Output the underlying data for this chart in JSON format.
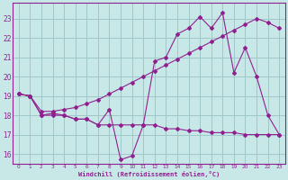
{
  "xlabel": "Windchill (Refroidissement éolien,°C)",
  "bg_color": "#c8e8e8",
  "grid_color": "#a0c8c8",
  "line_color": "#902090",
  "xlim": [
    -0.5,
    23.5
  ],
  "ylim": [
    15.5,
    23.8
  ],
  "yticks": [
    16,
    17,
    18,
    19,
    20,
    21,
    22,
    23
  ],
  "xticks": [
    0,
    1,
    2,
    3,
    4,
    5,
    6,
    7,
    8,
    9,
    10,
    11,
    12,
    13,
    14,
    15,
    16,
    17,
    18,
    19,
    20,
    21,
    22,
    23
  ],
  "line1_x": [
    0,
    1,
    2,
    3,
    4,
    5,
    6,
    7,
    8,
    9,
    10,
    11,
    12,
    13,
    14,
    15,
    16,
    17,
    18,
    19,
    20,
    21,
    22,
    23
  ],
  "line1_y": [
    19.1,
    19.0,
    18.0,
    18.0,
    18.0,
    17.8,
    17.8,
    17.5,
    18.3,
    15.7,
    15.9,
    17.5,
    20.8,
    21.0,
    22.2,
    22.5,
    23.1,
    22.5,
    23.3,
    20.2,
    21.5,
    20.0,
    18.0,
    17.0
  ],
  "line2_x": [
    0,
    1,
    2,
    3,
    4,
    5,
    6,
    7,
    8,
    9,
    10,
    11,
    12,
    13,
    14,
    15,
    16,
    17,
    18,
    19,
    20,
    21,
    22,
    23
  ],
  "line2_y": [
    19.1,
    19.0,
    18.0,
    18.1,
    18.0,
    17.8,
    17.8,
    17.5,
    17.5,
    17.5,
    17.5,
    17.5,
    17.5,
    17.3,
    17.3,
    17.2,
    17.2,
    17.1,
    17.1,
    17.1,
    17.0,
    17.0,
    17.0,
    17.0
  ],
  "line3_x": [
    0,
    1,
    2,
    3,
    4,
    5,
    6,
    7,
    8,
    9,
    10,
    11,
    12,
    13,
    14,
    15,
    16,
    17,
    18,
    19,
    20,
    21,
    22,
    23
  ],
  "line3_y": [
    19.1,
    19.0,
    18.2,
    18.2,
    18.3,
    18.4,
    18.6,
    18.8,
    19.1,
    19.4,
    19.7,
    20.0,
    20.3,
    20.6,
    20.9,
    21.2,
    21.5,
    21.8,
    22.1,
    22.4,
    22.7,
    23.0,
    22.8,
    22.5
  ]
}
